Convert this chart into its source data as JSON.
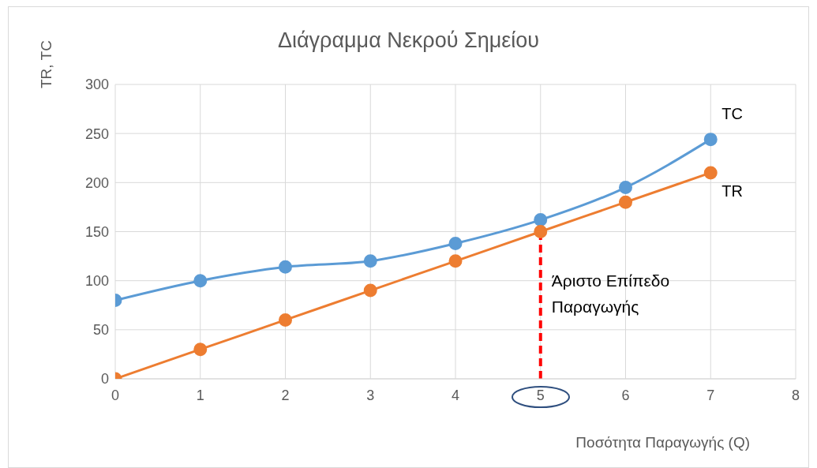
{
  "chart_data": {
    "type": "line",
    "title": "Διάγραμμα Νεκρού Σημείου",
    "xlabel": "Ποσότητα Παραγωγής (Q)",
    "ylabel": "TR, TC",
    "x": [
      0,
      1,
      2,
      3,
      4,
      5,
      6,
      7
    ],
    "series": [
      {
        "name": "TC",
        "color": "#5b9bd5",
        "values": [
          80,
          100,
          114,
          120,
          138,
          162,
          195,
          244
        ]
      },
      {
        "name": "TR",
        "color": "#ed7d31",
        "values": [
          0,
          30,
          60,
          90,
          120,
          150,
          180,
          210
        ]
      }
    ],
    "xlim": [
      0,
      8
    ],
    "xticks": [
      0,
      1,
      2,
      3,
      4,
      5,
      6,
      7,
      8
    ],
    "ylim": [
      0,
      300
    ],
    "yticks": [
      0,
      50,
      100,
      150,
      200,
      250,
      300
    ],
    "grid": true,
    "marker": "circle",
    "line_style": "solid",
    "ref_lines": [
      {
        "axis": "x",
        "value": 5,
        "label": "Άριστο Επίπεδο Παραγωγής",
        "color": "#ff0000",
        "line_style": "dashed"
      }
    ]
  }
}
